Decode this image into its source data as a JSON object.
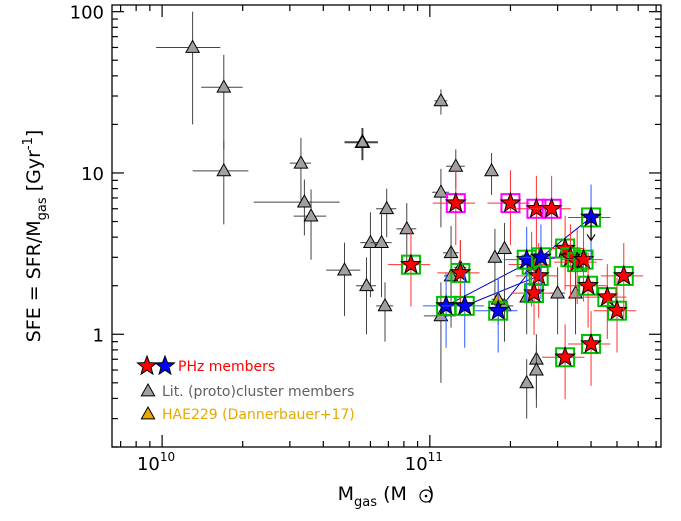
{
  "chart_data": {
    "type": "scatter",
    "title": "",
    "xlabel_main": "M",
    "xlabel_sub": "gas",
    "xlabel_unit_open": " (M",
    "xlabel_unit_close": ")",
    "ylabel_main": "SFE = SFR/M",
    "ylabel_sub": "gas",
    "ylabel_unit": " [Gyr",
    "ylabel_unit_sup": "-1",
    "ylabel_unit_close": "]",
    "x_scale": "log",
    "y_scale": "log",
    "xlim": [
      6500000000.0,
      730000000000.0
    ],
    "ylim": [
      0.2,
      110
    ],
    "x_ticks": [
      {
        "value": 10000000000.0,
        "base": "10",
        "exp": "10"
      },
      {
        "value": 100000000000.0,
        "base": "10",
        "exp": "11"
      }
    ],
    "y_ticks": [
      {
        "value": 1,
        "label": "1"
      },
      {
        "value": 10,
        "label": "10"
      },
      {
        "value": 100,
        "label": "100"
      }
    ],
    "legend": {
      "position": "bottom-left",
      "entries": [
        {
          "label": "PHz members",
          "color": "#ff0000",
          "marker": "stars-red-blue"
        },
        {
          "label": "Lit. (proto)cluster members",
          "color": "#606060",
          "marker": "triangle-gray"
        },
        {
          "label": "HAE229 (Dannerbauer+17)",
          "color": "#e8a800",
          "marker": "triangle-orange"
        }
      ]
    },
    "series": [
      {
        "name": "Lit. (proto)cluster members",
        "marker": "triangle",
        "color": "#a0a0a0",
        "points": [
          {
            "x": 13000000000.0,
            "y": 60,
            "xerr": [
              3500000000.0,
              3500000000.0
            ],
            "yerr": [
              40,
              40
            ]
          },
          {
            "x": 17000000000.0,
            "y": 34,
            "xerr": [
              3000000000.0,
              3000000000.0
            ],
            "yerr": [
              20,
              20
            ]
          },
          {
            "x": 17000000000.0,
            "y": 10.3,
            "xerr": [
              4000000000.0,
              4000000000.0
            ],
            "yerr": [
              5.5,
              5.5
            ]
          },
          {
            "x": 33000000000.0,
            "y": 11.5,
            "xerr": [
              3000000000.0,
              3000000000.0
            ],
            "yerr": [
              5,
              5
            ]
          },
          {
            "x": 34000000000.0,
            "y": 6.6,
            "xerr": [
              12000000000.0,
              12000000000.0
            ],
            "yerr": [
              2.5,
              2.5
            ]
          },
          {
            "x": 36000000000.0,
            "y": 5.4,
            "xerr": [
              5000000000.0,
              5000000000.0
            ],
            "yerr": [
              2.5,
              2.5
            ]
          },
          {
            "x": 110000000000.0,
            "y": 28,
            "xerr": [
              6000000000.0,
              6000000000.0
            ],
            "yerr": [
              5,
              5
            ]
          },
          {
            "x": 125000000000.0,
            "y": 11,
            "xerr": [
              10000000000.0,
              10000000000.0
            ],
            "yerr": [
              3,
              3
            ]
          },
          {
            "x": 110000000000.0,
            "y": 7.6,
            "xerr": [
              8000000000.0,
              8000000000.0
            ],
            "yerr": [
              3,
              3
            ]
          },
          {
            "x": 170000000000.0,
            "y": 10.3,
            "xerr": [
              5000000000.0,
              5000000000.0
            ],
            "yerr": [
              3,
              3
            ]
          },
          {
            "x": 69000000000.0,
            "y": 6.0,
            "xerr": [
              6000000000.0,
              6000000000.0
            ],
            "yerr": [
              2,
              2
            ]
          },
          {
            "x": 82000000000.0,
            "y": 4.5,
            "xerr": [
              7000000000.0,
              7000000000.0
            ],
            "yerr": [
              2,
              2
            ]
          },
          {
            "x": 60000000000.0,
            "y": 3.7,
            "xerr": [
              5000000000.0,
              5000000000.0
            ],
            "yerr": [
              2,
              2
            ]
          },
          {
            "x": 66000000000.0,
            "y": 3.7,
            "xerr": [
              6000000000.0,
              6000000000.0
            ],
            "yerr": [
              2,
              2
            ]
          },
          {
            "x": 48000000000.0,
            "y": 2.5,
            "xerr": [
              7000000000.0,
              7000000000.0
            ],
            "yerr": [
              1.2,
              1.2
            ]
          },
          {
            "x": 58000000000.0,
            "y": 2.0,
            "xerr": [
              5000000000.0,
              5000000000.0
            ],
            "yerr": [
              1,
              1
            ]
          },
          {
            "x": 68000000000.0,
            "y": 1.5,
            "xerr": [
              5000000000.0,
              5000000000.0
            ],
            "yerr": [
              0.6,
              0.6
            ]
          },
          {
            "x": 120000000000.0,
            "y": 3.2,
            "xerr": [
              8000000000.0,
              8000000000.0
            ],
            "yerr": [
              1.5,
              1.5
            ]
          },
          {
            "x": 130000000000.0,
            "y": 2.6,
            "xerr": [
              7000000000.0,
              7000000000.0
            ],
            "yerr": [
              1.2,
              1.2
            ]
          },
          {
            "x": 120000000000.0,
            "y": 2.3,
            "xerr": [
              7000000000.0,
              7000000000.0
            ],
            "yerr": [
              1.2,
              1.2
            ]
          },
          {
            "x": 175000000000.0,
            "y": 3.0,
            "xerr": [
              7000000000.0,
              7000000000.0
            ],
            "yerr": [
              1.5,
              1.5
            ]
          },
          {
            "x": 190000000000.0,
            "y": 3.4,
            "xerr": [
              8000000000.0,
              8000000000.0
            ],
            "yerr": [
              1.5,
              1.5
            ]
          },
          {
            "x": 110000000000.0,
            "y": 1.3,
            "xerr": [
              15000000000.0,
              15000000000.0
            ],
            "yerr": [
              0.8,
              0.8
            ]
          },
          {
            "x": 190000000000.0,
            "y": 1.5,
            "xerr": [
              15000000000.0,
              15000000000.0
            ],
            "yerr": [
              0.6,
              0.6
            ]
          },
          {
            "x": 230000000000.0,
            "y": 1.7,
            "xerr": [
              10000000000.0,
              10000000000.0
            ],
            "yerr": [
              0.7,
              0.7
            ]
          },
          {
            "x": 230000000000.0,
            "y": 0.5,
            "xerr": [
              10000000000.0,
              10000000000.0
            ],
            "yerr": [
              0.2,
              0.2
            ]
          },
          {
            "x": 250000000000.0,
            "y": 0.7,
            "xerr": [
              10000000000.0,
              10000000000.0
            ],
            "yerr": [
              0.3,
              0.3
            ]
          },
          {
            "x": 250000000000.0,
            "y": 0.6,
            "xerr": [
              10000000000.0,
              10000000000.0
            ],
            "yerr": [
              0.25,
              0.25
            ]
          },
          {
            "x": 300000000000.0,
            "y": 1.8,
            "xerr": [
              20000000000.0,
              20000000000.0
            ],
            "yerr": [
              0.8,
              0.8
            ]
          },
          {
            "x": 350000000000.0,
            "y": 1.8,
            "xerr": [
              15000000000.0,
              15000000000.0
            ],
            "yerr": [
              0.8,
              0.8
            ]
          }
        ]
      },
      {
        "name": "HAE229 (Dannerbauer+17)",
        "marker": "triangle",
        "color": "#e8a800",
        "points": [
          {
            "x": 180000000000.0,
            "y": 1.65,
            "xerr": [
              10000000000.0,
              10000000000.0
            ],
            "yerr": [
              0.5,
              0.5
            ]
          }
        ]
      },
      {
        "name": "Highlighted literature point",
        "marker": "triangle",
        "color": "#a0a0a0",
        "outline": "bold",
        "points": [
          {
            "x": 56000000000.0,
            "y": 15.5,
            "xerr": [
              8000000000.0,
              8000000000.0
            ],
            "yerr": [
              3.5,
              3.5
            ]
          }
        ]
      },
      {
        "name": "PHz members",
        "marker": "star",
        "color": "#ff0000",
        "points": [
          {
            "x": 125000000000.0,
            "y": 6.5,
            "box": "#ff00ff"
          },
          {
            "x": 200000000000.0,
            "y": 6.5,
            "box": "#ff00ff"
          },
          {
            "x": 250000000000.0,
            "y": 6.0,
            "box": "#ff00ff"
          },
          {
            "x": 285000000000.0,
            "y": 6.0,
            "box": "#ff00ff"
          },
          {
            "x": 85000000000.0,
            "y": 2.7,
            "box": "#00c000"
          },
          {
            "x": 130000000000.0,
            "y": 2.4,
            "box": "#00c000"
          },
          {
            "x": 240000000000.0,
            "y": 2.7,
            "box": "#00c000"
          },
          {
            "x": 255000000000.0,
            "y": 2.3,
            "box": "#00c000"
          },
          {
            "x": 245000000000.0,
            "y": 1.8,
            "box": "#00c000"
          },
          {
            "x": 320000000000.0,
            "y": 3.4,
            "box": "#00c000"
          },
          {
            "x": 335000000000.0,
            "y": 3.0,
            "box": "#00c000"
          },
          {
            "x": 355000000000.0,
            "y": 2.8,
            "box": "#00c000"
          },
          {
            "x": 375000000000.0,
            "y": 2.9,
            "box": "#00c000"
          },
          {
            "x": 390000000000.0,
            "y": 2.0,
            "box": "#00c000"
          },
          {
            "x": 460000000000.0,
            "y": 1.7,
            "box": "#00c000"
          },
          {
            "x": 500000000000.0,
            "y": 1.4,
            "box": "#00c000"
          },
          {
            "x": 530000000000.0,
            "y": 2.3,
            "box": "#00c000"
          },
          {
            "x": 320000000000.0,
            "y": 0.72,
            "box": "#00c000"
          },
          {
            "x": 400000000000.0,
            "y": 0.87,
            "box": "#00c000"
          }
        ]
      },
      {
        "name": "PHz members (blue)",
        "marker": "star",
        "color": "#0000ff",
        "points": [
          {
            "x": 115000000000.0,
            "y": 1.5,
            "box": "#00c000"
          },
          {
            "x": 135000000000.0,
            "y": 1.5,
            "box": "#00c000"
          },
          {
            "x": 180000000000.0,
            "y": 1.4,
            "box": "#00c000"
          },
          {
            "x": 230000000000.0,
            "y": 2.9,
            "box": "#00c000"
          },
          {
            "x": 260000000000.0,
            "y": 3.0,
            "box": "#00c000"
          },
          {
            "x": 400000000000.0,
            "y": 5.3,
            "box": "#00c000",
            "upper_limit": true
          }
        ]
      }
    ]
  }
}
